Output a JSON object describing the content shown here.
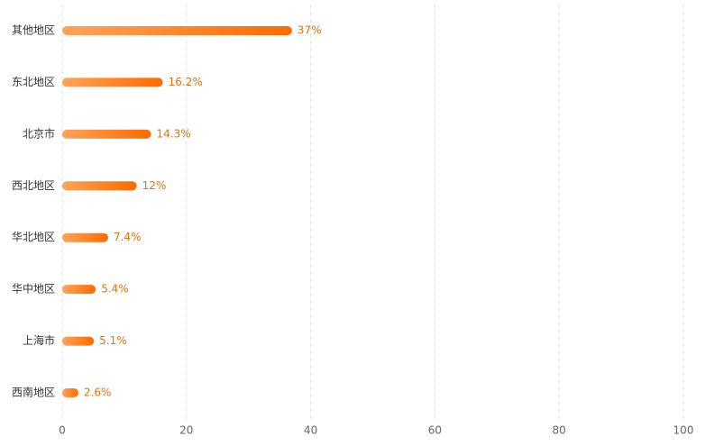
{
  "chart_data": {
    "type": "bar",
    "orientation": "horizontal",
    "categories": [
      "其他地区",
      "东北地区",
      "北京市",
      "西北地区",
      "华北地区",
      "华中地区",
      "上海市",
      "西南地区"
    ],
    "values": [
      37,
      16.2,
      14.3,
      12,
      7.4,
      5.4,
      5.1,
      2.6
    ],
    "value_labels": [
      "37%",
      "16.2%",
      "14.3%",
      "12%",
      "7.4%",
      "5.4%",
      "5.1%",
      "2.6%"
    ],
    "gradient": [
      "#ffa459",
      "#ff6a00"
    ],
    "label_color": "#e8700f",
    "xlim": [
      0,
      100
    ],
    "xticks": [
      0,
      20,
      40,
      60,
      80,
      100
    ],
    "grid": true
  }
}
